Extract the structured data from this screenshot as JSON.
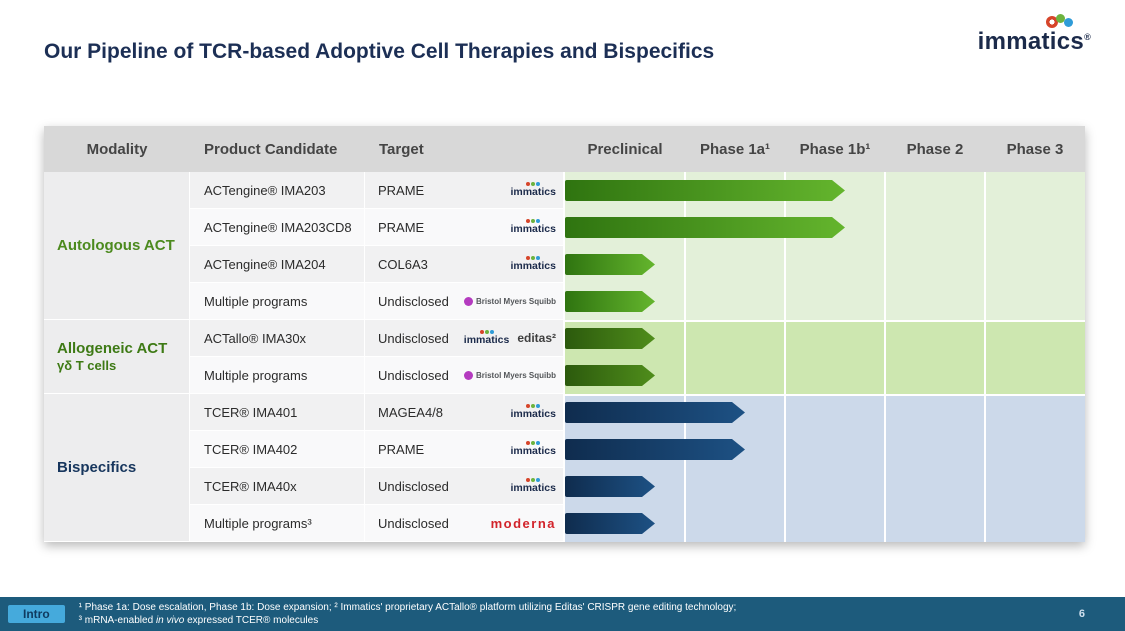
{
  "slide": {
    "title": "Our Pipeline of TCR-based Adoptive Cell Therapies and Bispecifics",
    "page_number": "6"
  },
  "logo": {
    "text": "immatics",
    "reg": "®",
    "dot_colors": [
      "#d6452a",
      "#6db33f",
      "#2f9cd8"
    ]
  },
  "header": {
    "modality": "Modality",
    "product": "Product Candidate",
    "target": "Target",
    "phases": [
      "Preclinical",
      "Phase 1a¹",
      "Phase 1b¹",
      "Phase 2",
      "Phase 3"
    ]
  },
  "brand_colors": {
    "immatics": "#1b2a4a",
    "bms_icon": "#b43bbf",
    "bms_text": "#54575a",
    "editas": "#3f3f3f",
    "moderna": "#d2232a"
  },
  "groups": [
    {
      "label": "Autologous ACT",
      "sublabel": "",
      "label_color": "#4c8a1e",
      "area_bg": "#e3f0d9",
      "bar_gradient": [
        "#2f7410",
        "#64b52d"
      ],
      "rows": [
        {
          "product": "ACTengine® IMA203",
          "target": "PRAME",
          "partners": [
            {
              "type": "immatics",
              "label": "immatics"
            }
          ],
          "progress": 2.6
        },
        {
          "product": "ACTengine® IMA203CD8",
          "target": "PRAME",
          "partners": [
            {
              "type": "immatics",
              "label": "immatics"
            }
          ],
          "progress": 2.6
        },
        {
          "product": "ACTengine® IMA204",
          "target": "COL6A3",
          "partners": [
            {
              "type": "immatics",
              "label": "immatics"
            }
          ],
          "progress": 0.75
        },
        {
          "product": "Multiple programs",
          "target": "Undisclosed",
          "partners": [
            {
              "type": "bms",
              "label": "Bristol Myers Squibb"
            }
          ],
          "progress": 0.75
        }
      ]
    },
    {
      "label": "Allogeneic ACT",
      "sublabel": "γδ T cells",
      "label_color": "#3e7a15",
      "area_bg": "#cde7b0",
      "bar_gradient": [
        "#2c5a0d",
        "#4f8d1b"
      ],
      "rows": [
        {
          "product": "ACTallo® IMA30x",
          "target": "Undisclosed",
          "partners": [
            {
              "type": "immatics",
              "label": "immatics"
            },
            {
              "type": "editas",
              "label": "editas²"
            }
          ],
          "progress": 0.75
        },
        {
          "product": "Multiple programs",
          "target": "Undisclosed",
          "partners": [
            {
              "type": "bms",
              "label": "Bristol Myers Squibb"
            }
          ],
          "progress": 0.75
        }
      ]
    },
    {
      "label": "Bispecifics",
      "sublabel": "",
      "label_color": "#17365d",
      "area_bg": "#ccd9ea",
      "bar_gradient": [
        "#0f2c4e",
        "#1d5184"
      ],
      "rows": [
        {
          "product": "TCER® IMA401",
          "target": "MAGEA4/8",
          "partners": [
            {
              "type": "immatics",
              "label": "immatics"
            }
          ],
          "progress": 1.6
        },
        {
          "product": "TCER® IMA402",
          "target": "PRAME",
          "partners": [
            {
              "type": "immatics",
              "label": "immatics"
            }
          ],
          "progress": 1.6
        },
        {
          "product": "TCER® IMA40x",
          "target": "Undisclosed",
          "partners": [
            {
              "type": "immatics",
              "label": "immatics"
            }
          ],
          "progress": 0.75
        },
        {
          "product": "Multiple programs³",
          "target": "Undisclosed",
          "partners": [
            {
              "type": "moderna",
              "label": "moderna"
            }
          ],
          "progress": 0.75
        }
      ]
    }
  ],
  "footer": {
    "tab": "Intro",
    "bg": "#1d5b7c",
    "tab_bg": "#45aadc",
    "note1": "¹ Phase 1a: Dose escalation, Phase 1b: Dose expansion; ² Immatics' proprietary ACTallo® platform utilizing Editas' CRISPR gene editing technology;",
    "note2_prefix": "³ mRNA-enabled ",
    "note2_italic": "in vivo",
    "note2_suffix": " expressed TCER® molecules"
  },
  "chart_data": {
    "type": "bar",
    "orientation": "horizontal",
    "title": "Our Pipeline of TCR-based Adoptive Cell Therapies and Bispecifics",
    "stage_columns": [
      "Preclinical",
      "Phase 1a",
      "Phase 1b",
      "Phase 2",
      "Phase 3"
    ],
    "unit_note": "Progress in stage units: 0-1 Preclinical, 1-2 Phase 1a, 2-3 Phase 1b, 3-4 Phase 2, 4-5 Phase 3",
    "xlim": [
      0,
      5
    ],
    "categories": [
      "ACTengine® IMA203",
      "ACTengine® IMA203CD8",
      "ACTengine® IMA204",
      "Multiple programs (Bristol Myers Squibb)",
      "ACTallo® IMA30x",
      "Multiple programs (Bristol Myers Squibb)",
      "TCER® IMA401",
      "TCER® IMA402",
      "TCER® IMA40x",
      "Multiple programs (Moderna)"
    ],
    "values": [
      2.6,
      2.6,
      0.75,
      0.75,
      0.75,
      0.75,
      1.6,
      1.6,
      0.75,
      0.75
    ],
    "targets": [
      "PRAME",
      "PRAME",
      "COL6A3",
      "Undisclosed",
      "Undisclosed",
      "Undisclosed",
      "MAGEA4/8",
      "PRAME",
      "Undisclosed",
      "Undisclosed"
    ],
    "groups": [
      "Autologous ACT",
      "Autologous ACT",
      "Autologous ACT",
      "Autologous ACT",
      "Allogeneic ACT γδ T cells",
      "Allogeneic ACT γδ T cells",
      "Bispecifics",
      "Bispecifics",
      "Bispecifics",
      "Bispecifics"
    ]
  }
}
